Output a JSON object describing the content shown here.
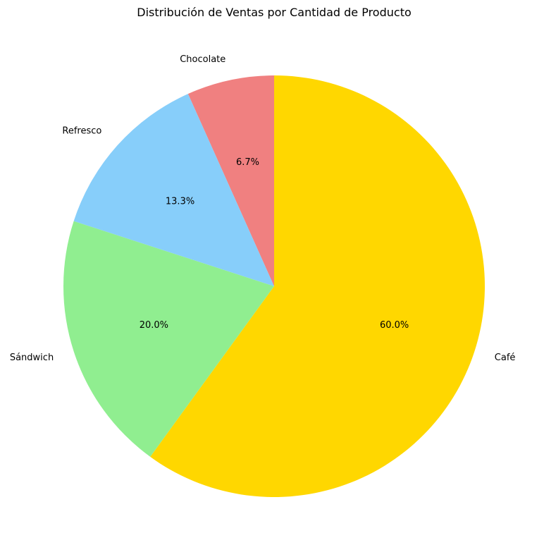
{
  "chart_data": {
    "type": "pie",
    "title": "Distribución de Ventas por Cantidad de Producto",
    "start_angle_deg": 90,
    "direction": "counterclockwise",
    "slices": [
      {
        "label": "Chocolate",
        "value": 6.7,
        "pct_label": "6.7%",
        "color": "#F08080"
      },
      {
        "label": "Refresco",
        "value": 13.3,
        "pct_label": "13.3%",
        "color": "#87CEFA"
      },
      {
        "label": "Sándwich",
        "value": 20.0,
        "pct_label": "20.0%",
        "color": "#90EE90"
      },
      {
        "label": "Café",
        "value": 60.0,
        "pct_label": "60.0%",
        "color": "#FFD700"
      }
    ]
  }
}
